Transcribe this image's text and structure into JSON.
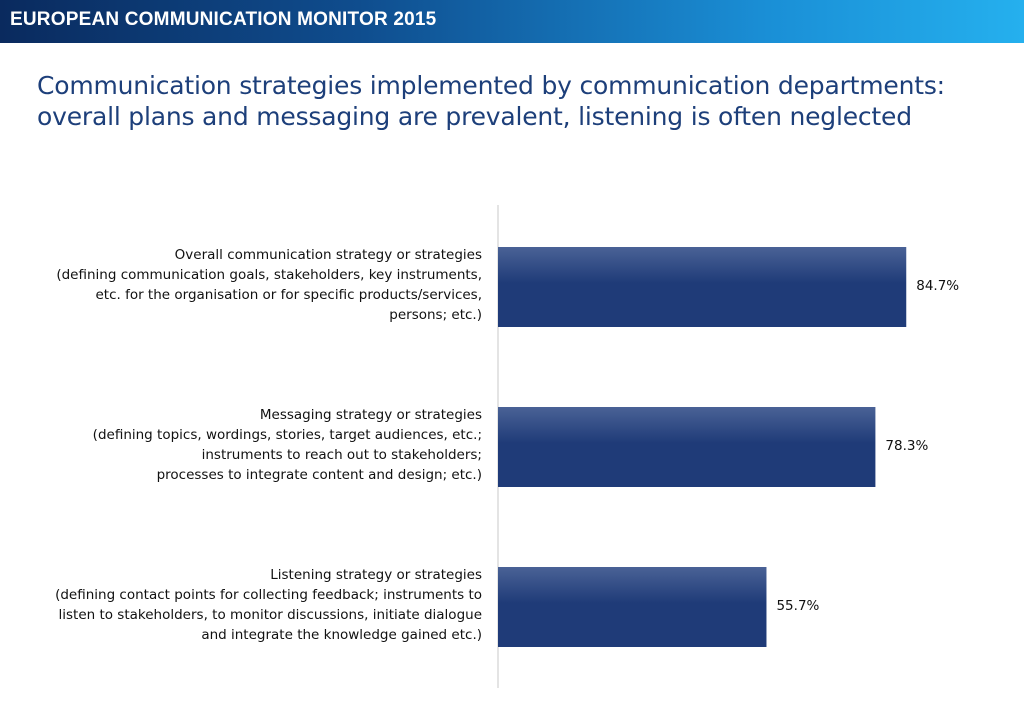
{
  "header": {
    "title": "EUROPEAN COMMUNICATION MONITOR 2015"
  },
  "slide": {
    "title_lines": [
      "Communication strategies implemented by communication departments:",
      "overall plans and messaging are prevalent, listening is often neglected"
    ]
  },
  "colors": {
    "bar": "#1f3b78",
    "bar_top": "#4a6296",
    "axis": "#c8c8c8",
    "header_start": "#0a2a5e",
    "header_end": "#25b0ee"
  },
  "chart_data": {
    "type": "bar",
    "orientation": "horizontal",
    "title": "",
    "xlabel": "",
    "ylabel": "",
    "xlim": [
      0,
      100
    ],
    "grid": false,
    "categories": [
      {
        "lines": [
          "Overall communication strategy or strategies",
          "(defining communication goals, stakeholders, key instruments,",
          "etc. for the organisation or for specific products/services,",
          "persons; etc.)"
        ]
      },
      {
        "lines": [
          "Messaging strategy or strategies",
          "(defining topics, wordings, stories, target audiences, etc.;",
          "instruments to reach out to stakeholders;",
          "processes to integrate content and design; etc.)"
        ]
      },
      {
        "lines": [
          "Listening strategy or strategies",
          "(defining contact points for collecting feedback; instruments to",
          "listen to stakeholders, to monitor discussions, initiate dialogue",
          "and integrate the knowledge gained etc.)"
        ]
      }
    ],
    "values": [
      84.7,
      78.3,
      55.7
    ],
    "value_labels": [
      "84.7%",
      "78.3%",
      "55.7%"
    ]
  }
}
